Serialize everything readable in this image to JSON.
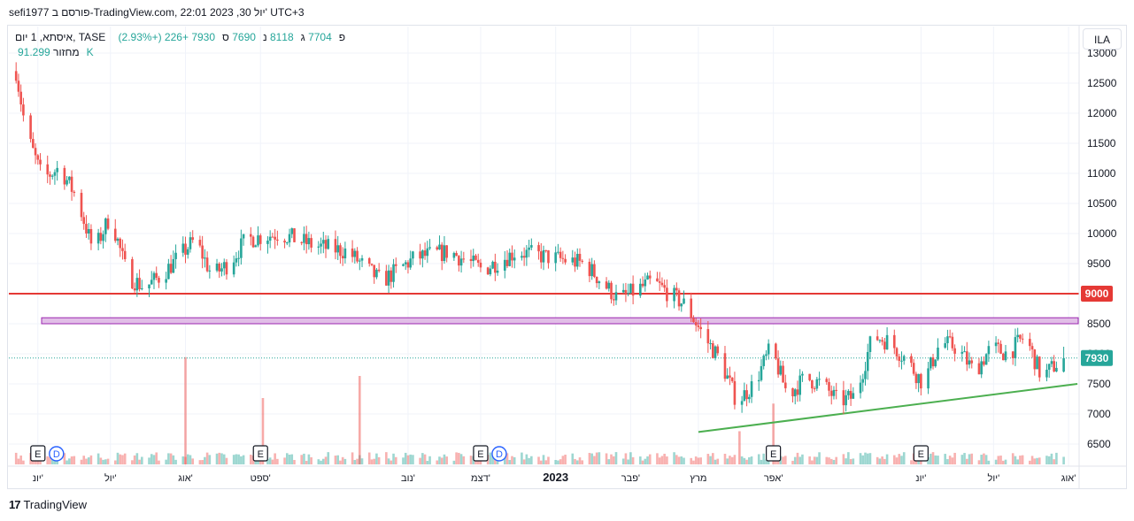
{
  "header": {
    "text": "sefi1977 פורסם ב-TradingView.com, 22:01 2023 ,30 יול' UTC+3"
  },
  "legend": {
    "title": "איסתא, 1 יום, TASE",
    "open_label": "פ",
    "open_value": "7704",
    "high_label": "ג",
    "high_value": "8118",
    "low_label": "נ",
    "low_value": "7690",
    "close_label": "ס",
    "close_value": "7930",
    "change": "+226 (+2.93%)",
    "volume_label": "מחזור",
    "volume_value": "91.299K"
  },
  "currency": "ILA",
  "footer": {
    "logo_mark": "17",
    "logo_text": "TradingView"
  },
  "colors": {
    "up": "#26a69a",
    "down": "#ef5350",
    "resistance": "#e53935",
    "zone_fill": "#e1bee7",
    "zone_stroke": "#9c27b0",
    "trendline": "#4caf50"
  },
  "chart_data": {
    "type": "candlestick",
    "symbol": "TASE",
    "interval": "1D",
    "currency": "ILA",
    "ylim": [
      6200,
      13200
    ],
    "y_ticks": [
      "13000",
      "12500",
      "12000",
      "11500",
      "11000",
      "10500",
      "10000",
      "9500",
      "9000",
      "8500",
      "8000",
      "7500",
      "7000",
      "6500"
    ],
    "x_ticks": [
      "יונ'",
      "יול'",
      "אוג'",
      "ספט'",
      "נוב'",
      "דצמ'",
      "2023",
      "פבר'",
      "מרץ",
      "אפר'",
      "יונ'",
      "יול'",
      "אוג'"
    ],
    "last_price": {
      "value": 7930,
      "label": "7930"
    },
    "horizontal_line": {
      "value": 9000,
      "label": "9000"
    },
    "zone": {
      "from": 8500,
      "to": 8600
    },
    "trendline": {
      "from_date": "2023-03-01",
      "from_value": 6700,
      "to_date": "2023-08-01",
      "to_value": 7500
    },
    "events": [
      {
        "type": "E",
        "date": "2022-06-01"
      },
      {
        "type": "D",
        "date": "2022-06-10"
      },
      {
        "type": "E",
        "date": "2022-09-01"
      },
      {
        "type": "E",
        "date": "2022-12-01"
      },
      {
        "type": "D",
        "date": "2022-12-10"
      },
      {
        "type": "E",
        "date": "2023-04-01"
      },
      {
        "type": "E",
        "date": "2023-06-01"
      }
    ],
    "close_path": [
      [
        "2022-05-23",
        12700
      ],
      [
        "2022-05-27",
        11700
      ],
      [
        "2022-06-03",
        10900
      ],
      [
        "2022-06-10",
        11100
      ],
      [
        "2022-06-17",
        10600
      ],
      [
        "2022-06-24",
        9700
      ],
      [
        "2022-07-01",
        10300
      ],
      [
        "2022-07-08",
        9300
      ],
      [
        "2022-07-15",
        9100
      ],
      [
        "2022-07-22",
        9300
      ],
      [
        "2022-07-29",
        9600
      ],
      [
        "2022-08-05",
        9900
      ],
      [
        "2022-08-12",
        9300
      ],
      [
        "2022-08-19",
        9500
      ],
      [
        "2022-08-26",
        9900
      ],
      [
        "2022-09-09",
        10000
      ],
      [
        "2022-09-23",
        9800
      ],
      [
        "2022-10-07",
        9700
      ],
      [
        "2022-10-21",
        9200
      ],
      [
        "2022-11-04",
        9600
      ],
      [
        "2022-11-18",
        9700
      ],
      [
        "2022-12-02",
        9400
      ],
      [
        "2022-12-16",
        9700
      ],
      [
        "2022-12-30",
        9600
      ],
      [
        "2023-01-13",
        9500
      ],
      [
        "2023-01-27",
        8900
      ],
      [
        "2023-02-10",
        9200
      ],
      [
        "2023-02-24",
        8800
      ],
      [
        "2023-03-03",
        8300
      ],
      [
        "2023-03-10",
        7900
      ],
      [
        "2023-03-17",
        7200
      ],
      [
        "2023-03-24",
        7500
      ],
      [
        "2023-03-31",
        8100
      ],
      [
        "2023-04-07",
        7300
      ],
      [
        "2023-04-14",
        7600
      ],
      [
        "2023-04-21",
        7500
      ],
      [
        "2023-04-28",
        7200
      ],
      [
        "2023-05-05",
        7300
      ],
      [
        "2023-05-12",
        8300
      ],
      [
        "2023-05-19",
        8200
      ],
      [
        "2023-05-26",
        7900
      ],
      [
        "2023-06-02",
        7500
      ],
      [
        "2023-06-09",
        8200
      ],
      [
        "2023-06-16",
        8100
      ],
      [
        "2023-06-23",
        7700
      ],
      [
        "2023-06-30",
        8100
      ],
      [
        "2023-07-07",
        8000
      ],
      [
        "2023-07-14",
        8300
      ],
      [
        "2023-07-21",
        7600
      ],
      [
        "2023-07-26",
        7800
      ],
      [
        "2023-07-30",
        7930
      ]
    ],
    "volume_spikes": [
      {
        "date": "2022-08-01",
        "level": 0.97
      },
      {
        "date": "2022-09-02",
        "level": 0.6
      },
      {
        "date": "2022-10-12",
        "level": 0.8
      },
      {
        "date": "2023-03-18",
        "level": 0.3
      },
      {
        "date": "2023-04-01",
        "level": 0.55
      }
    ]
  }
}
